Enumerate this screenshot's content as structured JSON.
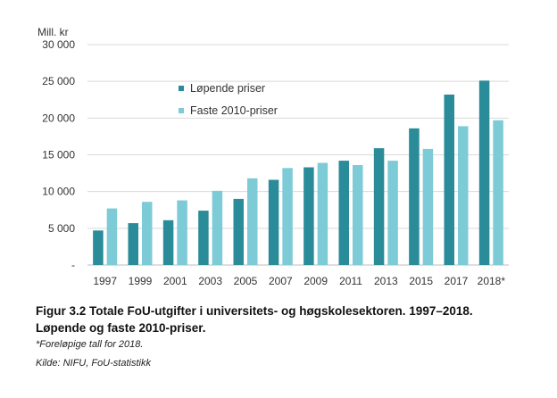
{
  "chart_data": {
    "type": "bar",
    "unit_label": "Mill. kr",
    "categories": [
      "1997",
      "1999",
      "2001",
      "2003",
      "2005",
      "2007",
      "2009",
      "2011",
      "2013",
      "2015",
      "2017",
      "2018*"
    ],
    "series": [
      {
        "name": "Løpende priser",
        "color": "#2a8b99",
        "values": [
          4700,
          5700,
          6100,
          7400,
          9000,
          11600,
          13300,
          14200,
          15900,
          18600,
          23200,
          25100
        ]
      },
      {
        "name": "Faste 2010-priser",
        "color": "#7ccbd6",
        "values": [
          7700,
          8600,
          8800,
          10100,
          11800,
          13200,
          13900,
          13600,
          14200,
          15800,
          18900,
          19700
        ]
      }
    ],
    "yticks": [
      0,
      5000,
      10000,
      15000,
      20000,
      25000,
      30000
    ],
    "ytick_labels": [
      "-",
      "5 000",
      "10 000",
      "15 000",
      "20 000",
      "25 000",
      "30 000"
    ],
    "ylim": [
      0,
      30000
    ],
    "grid": true,
    "legend_position": "top-left"
  },
  "caption": {
    "line1": "Figur 3.2 Totale FoU-utgifter i universitets- og høgskolesektoren. 1997–2018.",
    "line2": "Løpende og faste 2010-priser."
  },
  "footnote": "*Foreløpige tall for 2018.",
  "source": "Kilde: NIFU, FoU-statistikk"
}
